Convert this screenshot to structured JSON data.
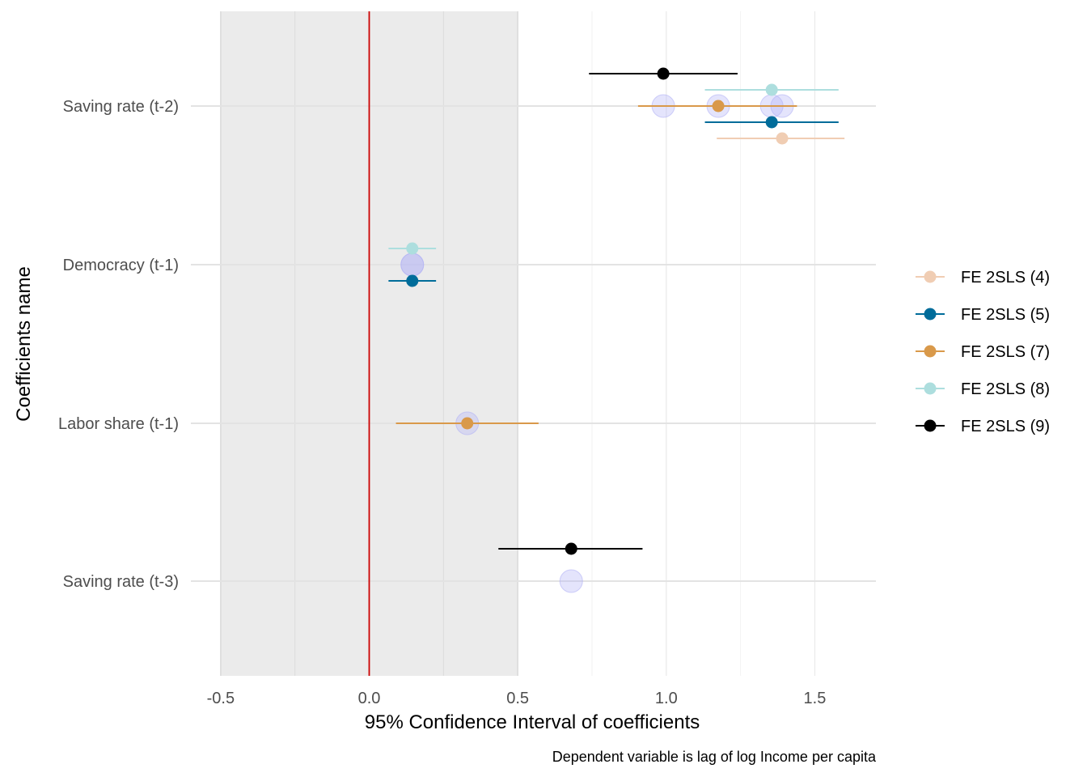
{
  "chart_data": {
    "type": "scatter",
    "subtype": "coefficient-plot-with-confidence-intervals",
    "xlabel": "95% Confidence Interval of coefficients",
    "ylabel": "Coefficients name",
    "caption": "Dependent variable is lag of log Income per capita",
    "xlim": [
      -0.6,
      1.72
    ],
    "x_ticks": [
      -0.5,
      0.0,
      0.5,
      1.0,
      1.5
    ],
    "x_tick_labels": [
      "-0.5",
      "0.0",
      "0.5",
      "1.0",
      "1.5"
    ],
    "categories": [
      "Saving rate (t-2)",
      "Democracy (t-1)",
      "Labor share (t-1)",
      "Saving rate (t-3)"
    ],
    "reference_line": {
      "x": 0,
      "color": "#cc0000"
    },
    "shaded_region": {
      "x_range": [
        -0.5,
        0.5
      ],
      "color": "#ebebeb"
    },
    "grid": true,
    "legend_position": "right",
    "series": [
      {
        "name": "FE 2SLS (4)",
        "color": "#f0cdb3",
        "points": [
          {
            "category": "Saving rate (t-2)",
            "estimate": 1.39,
            "ci_low": 1.17,
            "ci_high": 1.6
          }
        ]
      },
      {
        "name": "FE 2SLS (5)",
        "color": "#006c9a",
        "points": [
          {
            "category": "Saving rate (t-2)",
            "estimate": 1.355,
            "ci_low": 1.13,
            "ci_high": 1.58
          },
          {
            "category": "Democracy (t-1)",
            "estimate": 0.145,
            "ci_low": 0.065,
            "ci_high": 0.225
          }
        ]
      },
      {
        "name": "FE 2SLS (7)",
        "color": "#d9994a",
        "points": [
          {
            "category": "Saving rate (t-2)",
            "estimate": 1.175,
            "ci_low": 0.905,
            "ci_high": 1.44
          },
          {
            "category": "Labor share (t-1)",
            "estimate": 0.33,
            "ci_low": 0.09,
            "ci_high": 0.57
          }
        ]
      },
      {
        "name": "FE 2SLS (8)",
        "color": "#addede",
        "points": [
          {
            "category": "Saving rate (t-2)",
            "estimate": 1.355,
            "ci_low": 1.13,
            "ci_high": 1.58
          },
          {
            "category": "Democracy (t-1)",
            "estimate": 0.145,
            "ci_low": 0.065,
            "ci_high": 0.225
          }
        ]
      },
      {
        "name": "FE 2SLS (9)",
        "color": "#000000",
        "points": [
          {
            "category": "Saving rate (t-2)",
            "estimate": 0.99,
            "ci_low": 0.74,
            "ci_high": 1.24
          },
          {
            "category": "Saving rate (t-3)",
            "estimate": 0.68,
            "ci_low": 0.435,
            "ci_high": 0.92
          }
        ]
      }
    ],
    "highlight_circles": {
      "color": "#b3b3f5",
      "points": [
        {
          "category": "Saving rate (t-2)",
          "x": 0.99
        },
        {
          "category": "Saving rate (t-2)",
          "x": 1.175
        },
        {
          "category": "Saving rate (t-2)",
          "x": 1.355
        },
        {
          "category": "Saving rate (t-2)",
          "x": 1.39
        },
        {
          "category": "Democracy (t-1)",
          "x": 0.145
        },
        {
          "category": "Democracy (t-1)",
          "x": 0.145
        },
        {
          "category": "Labor share (t-1)",
          "x": 0.33
        },
        {
          "category": "Saving rate (t-3)",
          "x": 0.68
        }
      ]
    }
  }
}
